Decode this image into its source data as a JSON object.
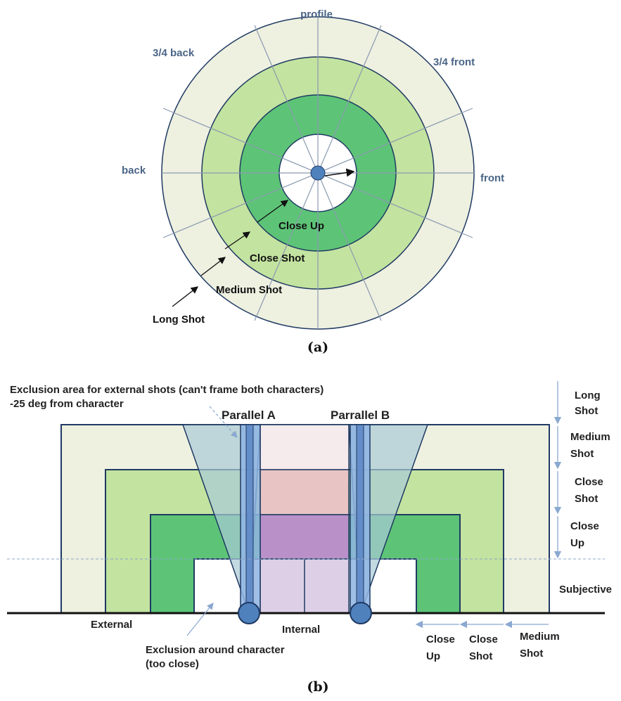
{
  "figure_a": {
    "caption": "(a)",
    "direction_labels": {
      "profile": "profile",
      "three_quarter_back": "3/4 back",
      "three_quarter_front": "3/4 front",
      "back": "back",
      "front": "front"
    },
    "ring_labels": {
      "close_up": "Close Up",
      "close_shot": "Close Shot",
      "medium_shot": "Medium Shot",
      "long_shot": "Long Shot"
    },
    "colors": {
      "long": "#eef0e0",
      "medium": "#c3e3a0",
      "close_shot": "#93d38a",
      "close_up": "#5dc477",
      "center": "#ffffff",
      "outline": "#1f3a63",
      "character": "#4f81bd"
    }
  },
  "figure_b": {
    "caption": "(b)",
    "exclusion_external": "Exclusion area for external shots (can't frame both characters)",
    "exclusion_external_line2": "-25 deg from character",
    "parallel_a": "Parallel A",
    "parallel_b": "Parrallel B",
    "external": "External",
    "internal": "Internal",
    "exclusion_character_line1": "Exclusion around character",
    "exclusion_character_line2": "(too close)",
    "right_labels": {
      "long_shot_1": "Long",
      "long_shot_2": "Shot",
      "medium_shot_1": "Medium",
      "medium_shot_2": "Shot",
      "close_shot_1": "Close",
      "close_shot_2": "Shot",
      "close_up_1": "Close",
      "close_up_2": "Up",
      "subjective": "Subjective"
    },
    "bottom_labels": {
      "close_up_1": "Close",
      "close_up_2": "Up",
      "close_shot_1": "Close",
      "close_shot_2": "Shot",
      "medium_shot_1": "Medium",
      "medium_shot_2": "Shot"
    },
    "colors": {
      "long": "#eef0e0",
      "medium": "#c3e3a0",
      "close_shot": "#5dc477",
      "internal_long": "#f5eaec",
      "internal_medium": "#e8c4c4",
      "internal_close": "#b991c8",
      "internal_subjective": "#ddd0e6",
      "parallel": "#8fb4e3",
      "parallel_dark": "#5b86c4",
      "exclusion": "#a9cbd6",
      "outline": "#1f3a63",
      "character": "#4f81bd"
    }
  }
}
